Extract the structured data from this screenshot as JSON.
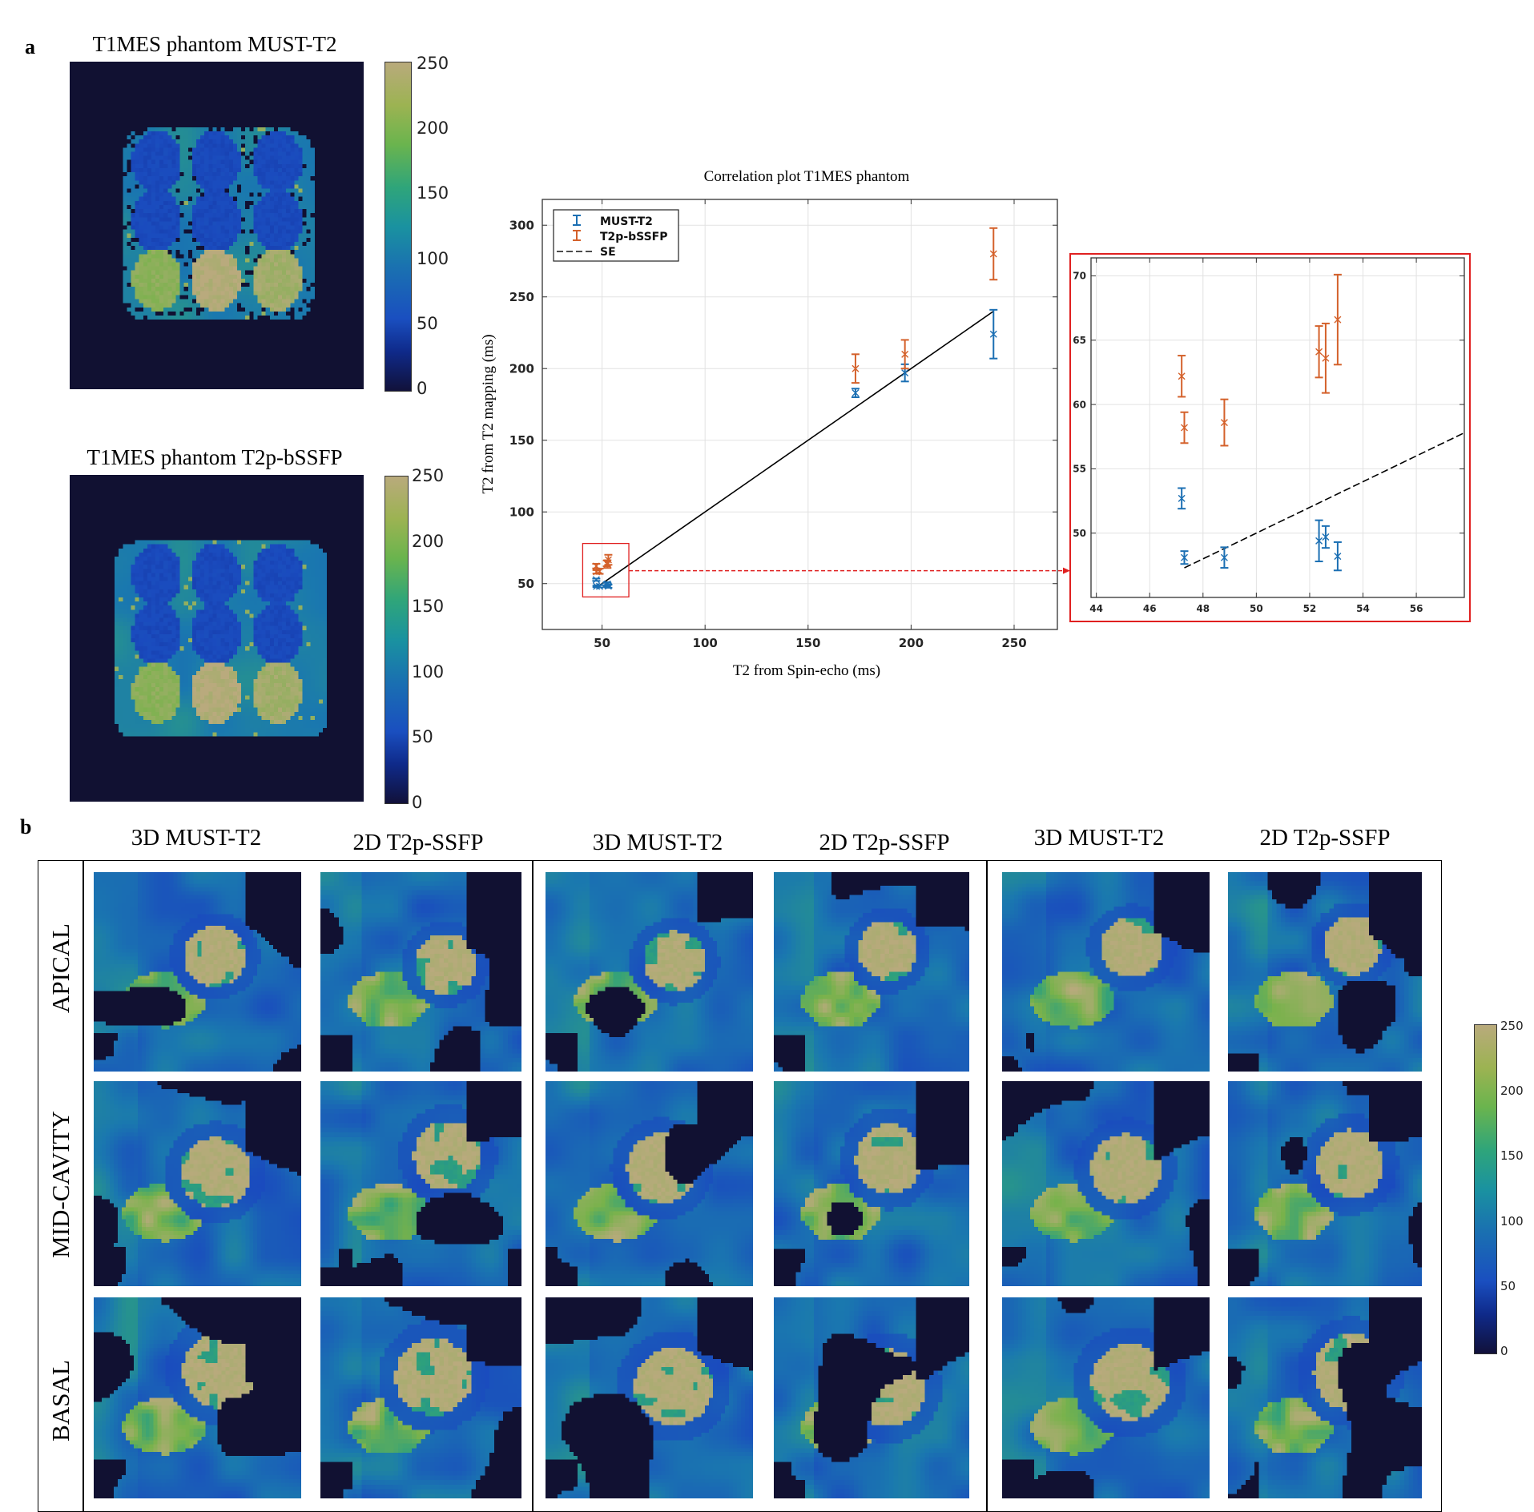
{
  "panel_a": {
    "label": "a",
    "phantom_titles": [
      "T1MES phantom MUST-T2",
      "T1MES phantom T2p-bSSFP"
    ],
    "colorbar_ticks": [
      "0",
      "50",
      "100",
      "150",
      "200",
      "250"
    ]
  },
  "colors": {
    "must_t2": "#1b6fb3",
    "t2p_bssfp": "#d4612b",
    "se_line": "#000000",
    "zoom_highlight": "#e02020"
  },
  "chart_data": [
    {
      "type": "scatter",
      "title": "Correlation plot T1MES phantom",
      "xlabel": "T2 from Spin-echo (ms)",
      "ylabel": "T2 from T2 mapping (ms)",
      "xlim": [
        21,
        271
      ],
      "ylim": [
        18,
        318
      ],
      "xticks": [
        50,
        100,
        150,
        200,
        250
      ],
      "yticks": [
        50,
        100,
        150,
        200,
        250,
        300
      ],
      "grid": true,
      "legend": "top-left",
      "series": [
        {
          "name": "MUST-T2",
          "marker": "x with error bars",
          "x": [
            47.2,
            47.3,
            48.8,
            52.35,
            52.6,
            53.05,
            173,
            197,
            240
          ],
          "y": [
            52.7,
            48.1,
            48.1,
            49.4,
            49.7,
            48.2,
            183,
            197,
            224
          ],
          "err": [
            0.8,
            0.5,
            0.8,
            1.6,
            0.85,
            1.1,
            3,
            6,
            17
          ]
        },
        {
          "name": "T2p-bSSFP",
          "marker": "x with error bars",
          "x": [
            47.2,
            47.3,
            48.8,
            52.35,
            52.6,
            53.05,
            173,
            197,
            240
          ],
          "y": [
            62.2,
            58.2,
            58.6,
            64.1,
            63.6,
            66.6,
            200,
            210,
            280
          ],
          "err": [
            1.6,
            1.2,
            1.8,
            2.0,
            2.7,
            3.5,
            10,
            10,
            18
          ]
        }
      ],
      "reference_line": {
        "name": "SE",
        "style": "dashed",
        "x": [
          47.3,
          240
        ],
        "y": [
          47.3,
          240
        ]
      },
      "zoom_region": {
        "x": [
          40.6,
          63
        ],
        "y": [
          40.7,
          78
        ]
      }
    },
    {
      "type": "scatter",
      "title": "",
      "xlim": [
        43.8,
        57.8
      ],
      "ylim": [
        45.0,
        71.4
      ],
      "xticks": [
        44,
        46,
        48,
        50,
        52,
        54,
        56
      ],
      "yticks": [
        50,
        55,
        60,
        65,
        70
      ],
      "grid": true,
      "series": [
        {
          "name": "MUST-T2",
          "x": [
            47.2,
            47.3,
            48.8,
            52.35,
            52.6,
            53.05
          ],
          "y": [
            52.7,
            48.1,
            48.1,
            49.4,
            49.7,
            48.2
          ],
          "err": [
            0.8,
            0.5,
            0.8,
            1.6,
            0.85,
            1.1
          ]
        },
        {
          "name": "T2p-bSSFP",
          "x": [
            47.2,
            47.3,
            48.8,
            52.35,
            52.6,
            53.05
          ],
          "y": [
            62.2,
            58.2,
            58.6,
            64.1,
            63.6,
            66.6
          ],
          "err": [
            1.6,
            1.2,
            1.8,
            2.0,
            2.7,
            3.5
          ]
        }
      ],
      "reference_line": {
        "name": "SE",
        "style": "dashed",
        "x": [
          47.3,
          57.8
        ],
        "y": [
          47.3,
          57.8
        ]
      }
    }
  ],
  "panel_b": {
    "label": "b",
    "column_headers": [
      "3D MUST-T2",
      "2D T2p-SSFP",
      "3D MUST-T2",
      "2D T2p-SSFP",
      "3D MUST-T2",
      "2D T2p-SSFP"
    ],
    "row_labels": [
      "APICAL",
      "MID-CAVITY",
      "BASAL"
    ],
    "colorbar_ticks": [
      "0",
      "50",
      "100",
      "150",
      "200",
      "250"
    ]
  }
}
